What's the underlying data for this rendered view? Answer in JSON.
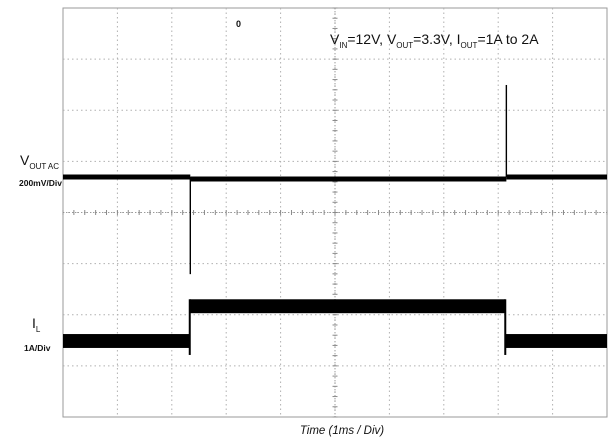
{
  "chart_data": {
    "type": "line",
    "title": "",
    "conditions": {
      "vin_main": "V",
      "vin_sub": "IN",
      "vin_val": "=12V,",
      "vout_main": "V",
      "vout_sub": "OUT",
      "vout_val": "=3.3V,",
      "iout_main": "I",
      "iout_sub": "OUT",
      "iout_val": "=1A to 2A"
    },
    "xlabel": "Time (1ms / Div)",
    "x_unit": "ms",
    "xlim": [
      0,
      10
    ],
    "grid": true,
    "divisions": {
      "horizontal": 10,
      "vertical": 8
    },
    "series": [
      {
        "label_main": "V",
        "label_sub": "OUT AC",
        "scale": "200mV/Div",
        "scale_per_div": 0.2,
        "unit": "V",
        "color": "#000000",
        "points_x": [
          0,
          2.33,
          2.34,
          2.36,
          2.45,
          2.6,
          10.0
        ],
        "points_y": [
          0,
          0,
          -0.38,
          -0.1,
          -0.03,
          -0.01,
          -0.01
        ],
        "events": [
          {
            "time": 2.34,
            "deviation": -0.38
          },
          {
            "time": 8.15,
            "deviation": 0.36
          }
        ]
      },
      {
        "label_main": "I",
        "label_sub": "L",
        "scale": "1A/Div",
        "scale_per_div": 1.0,
        "unit": "A",
        "color": "#000000",
        "x": [
          0,
          2.33,
          2.33,
          8.13,
          8.13,
          10
        ],
        "y_center": [
          1,
          1,
          2,
          2,
          1,
          1
        ],
        "ripple_pp": 0.4
      }
    ],
    "annotations": [
      {
        "text": "0",
        "position": "top"
      }
    ]
  }
}
